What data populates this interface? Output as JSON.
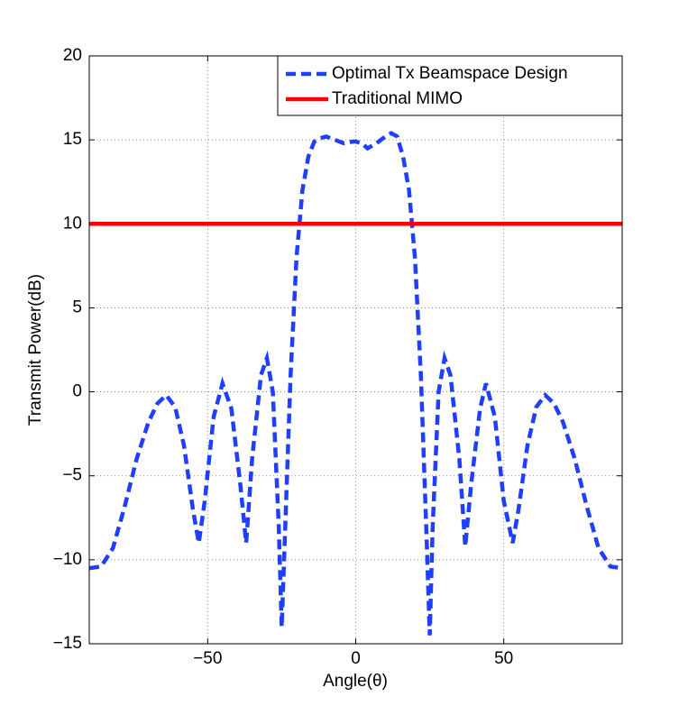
{
  "chart_data": {
    "type": "line",
    "xlabel": "Angle(θ)",
    "ylabel": "Transmit Power(dB)",
    "xlim": [
      -90,
      90
    ],
    "ylim": [
      -15,
      20
    ],
    "xticks": [
      {
        "value": -50,
        "label": "−50"
      },
      0,
      50
    ],
    "yticks": [
      {
        "value": -15,
        "label": "−15"
      },
      {
        "value": -10,
        "label": "−10"
      },
      {
        "value": -5,
        "label": "−5"
      },
      0,
      5,
      10,
      15,
      20
    ],
    "grid": true,
    "legend": "upper right",
    "series": [
      {
        "name": "Optimal Tx Beamspace Design",
        "color": "#1f3fff",
        "style": "dashed",
        "x": [
          -90,
          -86,
          -82,
          -78,
          -74,
          -70,
          -67,
          -64,
          -61,
          -58,
          -55,
          -53,
          -51,
          -48,
          -45,
          -42,
          -39,
          -37,
          -35,
          -32,
          -30,
          -28,
          -26,
          -25,
          -24,
          -22,
          -20,
          -18,
          -16,
          -14,
          -12,
          -10,
          -7,
          -4,
          -1,
          0,
          2,
          4,
          7,
          10,
          12,
          14,
          16,
          18,
          20,
          22,
          24,
          25,
          26,
          28,
          30,
          32,
          35,
          37,
          39,
          42,
          44,
          47,
          50,
          53,
          55,
          58,
          61,
          64,
          67,
          70,
          74,
          78,
          82,
          86,
          90
        ],
        "values": [
          -10.5,
          -10.4,
          -9.3,
          -6.8,
          -4,
          -1.8,
          -0.7,
          -0.2,
          -0.9,
          -3.2,
          -7,
          -9,
          -6.5,
          -1.5,
          0.5,
          -1,
          -5.5,
          -9,
          -4,
          1,
          2,
          0,
          -8,
          -14,
          -9,
          1,
          8,
          12,
          14,
          14.9,
          15.1,
          15.2,
          15,
          14.8,
          14.9,
          14.9,
          14.8,
          14.5,
          14.8,
          15.2,
          15.4,
          15.2,
          14,
          12,
          8,
          1,
          -9,
          -14.5,
          -8,
          0,
          2,
          1,
          -4,
          -9.2,
          -5.5,
          -1,
          0.5,
          -1.5,
          -6.5,
          -9,
          -7,
          -3.2,
          -0.9,
          -0.2,
          -0.7,
          -1.8,
          -4,
          -6.8,
          -9.3,
          -10.4,
          -10.5
        ]
      },
      {
        "name": "Traditional MIMO",
        "color": "#ff0000",
        "style": "solid",
        "x": [
          -90,
          90
        ],
        "values": [
          10,
          10
        ]
      }
    ]
  }
}
